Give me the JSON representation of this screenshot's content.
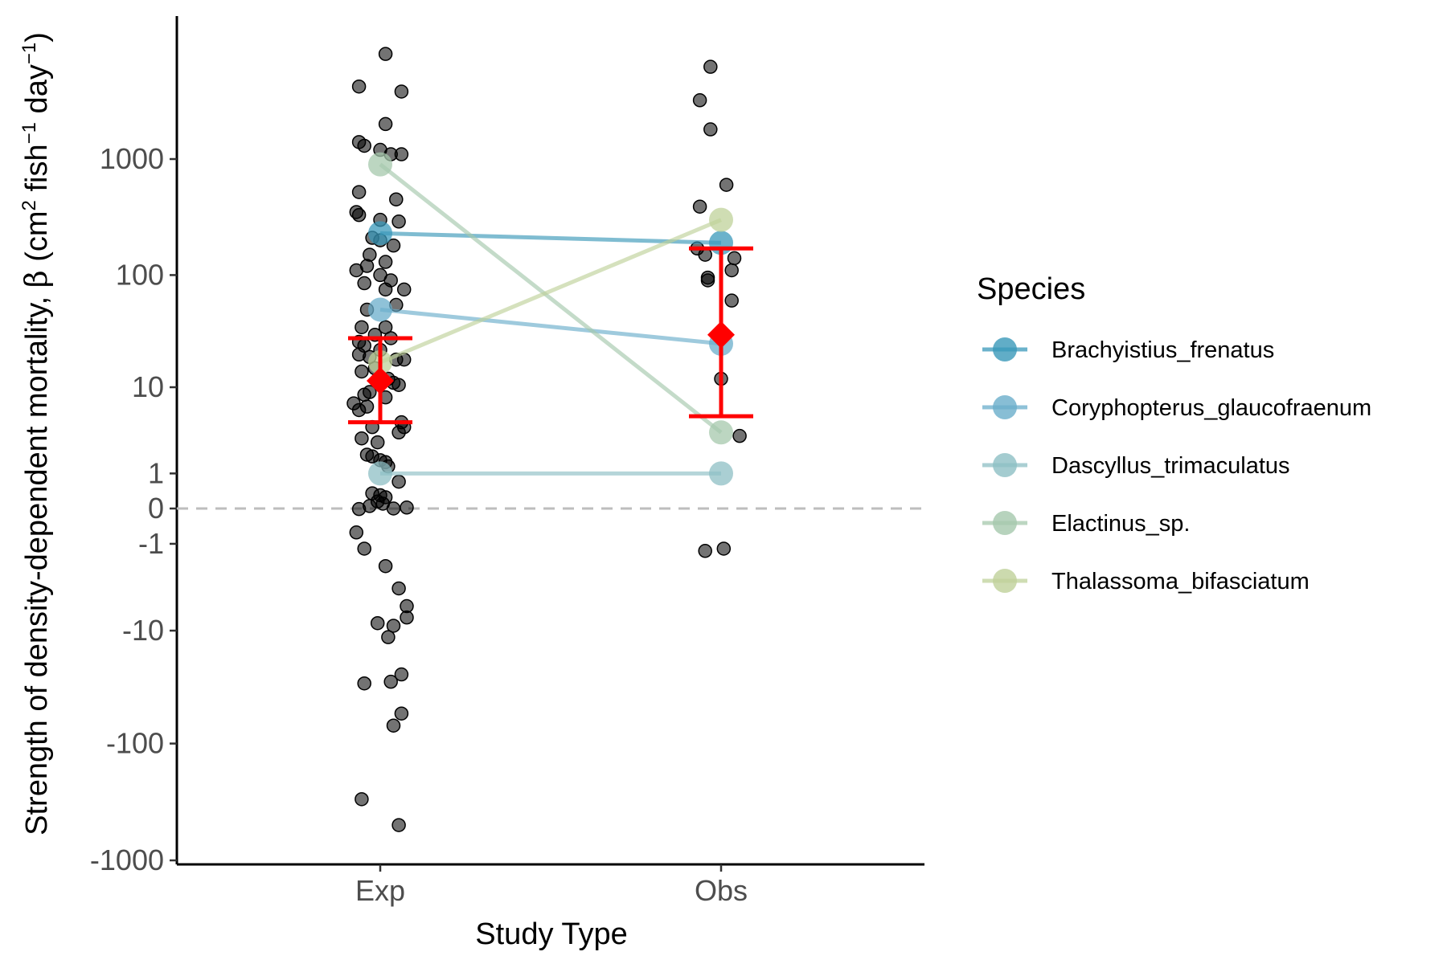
{
  "chart_data": {
    "type": "scatter",
    "title": "",
    "xlabel": "Study Type",
    "ylabel": "Strength of density-dependent mortality, β (cm² fish⁻¹ day⁻¹)",
    "ylabel_parts": {
      "main": "Strength of density-dependent mortality, ",
      "beta": "β",
      "paren_open": " (cm",
      "sup1": "2",
      "mid": " fish",
      "sup2": "−1",
      "mid2": " day",
      "sup3": "−1",
      "paren_close": ")"
    },
    "y_scale": "pseudo-log (signed log10(1+|y|))",
    "categories": [
      "Exp",
      "Obs"
    ],
    "y_ticks": [
      {
        "value": -1000,
        "label": "-1000"
      },
      {
        "value": -100,
        "label": "-100"
      },
      {
        "value": -10,
        "label": "-10"
      },
      {
        "value": -1,
        "label": "-1"
      },
      {
        "value": 0,
        "label": "0"
      },
      {
        "value": 1,
        "label": "1"
      },
      {
        "value": 10,
        "label": "10"
      },
      {
        "value": 100,
        "label": "100"
      },
      {
        "value": 1000,
        "label": "1000"
      }
    ],
    "reference_line": {
      "y": 0,
      "style": "dashed",
      "color": "#bdbdbd"
    },
    "grid": false,
    "legend": {
      "title": "Species",
      "position": "right",
      "entries": [
        {
          "label": "Brachyistius_frenatus",
          "color": "#3a98b9"
        },
        {
          "label": "Coryphopterus_glaucofraenum",
          "color": "#6aaecb"
        },
        {
          "label": "Dascyllus_trimaculatus",
          "color": "#8dbfc4"
        },
        {
          "label": "Elactinus_sp.",
          "color": "#a5c8ac"
        },
        {
          "label": "Thalassoma_bifasciatum",
          "color": "#bfd19a"
        }
      ]
    },
    "species_lines": [
      {
        "name": "Brachyistius_frenatus",
        "color": "#3a98b9",
        "exp": 230,
        "obs": 190
      },
      {
        "name": "Coryphopterus_glaucofraenum",
        "color": "#6aaecb",
        "exp": 50,
        "obs": 25
      },
      {
        "name": "Dascyllus_trimaculatus",
        "color": "#8dbfc4",
        "exp": 1,
        "obs": 1
      },
      {
        "name": "Elactinus_sp.",
        "color": "#a5c8ac",
        "exp": 900,
        "obs": 3.5
      },
      {
        "name": "Thalassoma_bifasciatum",
        "color": "#bfd19a",
        "exp": 17,
        "obs": 300
      }
    ],
    "summary": [
      {
        "category": "Exp",
        "mean": 11.5,
        "lower": 4.5,
        "upper": 28,
        "color": "#ff0000"
      },
      {
        "category": "Obs",
        "mean": 30,
        "lower": 5.2,
        "upper": 170,
        "color": "#ff0000"
      }
    ],
    "points": {
      "Exp": [
        {
          "j": 0.02,
          "y": 8000
        },
        {
          "j": -0.08,
          "y": 4200
        },
        {
          "j": 0.08,
          "y": 3800
        },
        {
          "j": 0.02,
          "y": 2000
        },
        {
          "j": -0.08,
          "y": 1400
        },
        {
          "j": -0.06,
          "y": 1300
        },
        {
          "j": 0.0,
          "y": 1200
        },
        {
          "j": 0.04,
          "y": 1100
        },
        {
          "j": 0.08,
          "y": 1100
        },
        {
          "j": -0.08,
          "y": 520
        },
        {
          "j": 0.06,
          "y": 450
        },
        {
          "j": -0.09,
          "y": 350
        },
        {
          "j": -0.08,
          "y": 330
        },
        {
          "j": 0.0,
          "y": 300
        },
        {
          "j": 0.07,
          "y": 290
        },
        {
          "j": -0.03,
          "y": 210
        },
        {
          "j": 0.0,
          "y": 200
        },
        {
          "j": 0.05,
          "y": 180
        },
        {
          "j": -0.04,
          "y": 150
        },
        {
          "j": 0.02,
          "y": 130
        },
        {
          "j": -0.05,
          "y": 120
        },
        {
          "j": -0.09,
          "y": 110
        },
        {
          "j": 0.0,
          "y": 100
        },
        {
          "j": 0.04,
          "y": 90
        },
        {
          "j": -0.06,
          "y": 85
        },
        {
          "j": 0.02,
          "y": 75
        },
        {
          "j": 0.09,
          "y": 75
        },
        {
          "j": 0.06,
          "y": 55
        },
        {
          "j": -0.05,
          "y": 50
        },
        {
          "j": 0.02,
          "y": 35
        },
        {
          "j": -0.07,
          "y": 35
        },
        {
          "j": -0.02,
          "y": 30
        },
        {
          "j": 0.04,
          "y": 28
        },
        {
          "j": -0.08,
          "y": 26
        },
        {
          "j": -0.06,
          "y": 24
        },
        {
          "j": 0.0,
          "y": 22
        },
        {
          "j": -0.08,
          "y": 20
        },
        {
          "j": -0.04,
          "y": 19
        },
        {
          "j": 0.06,
          "y": 18
        },
        {
          "j": 0.09,
          "y": 18
        },
        {
          "j": -0.02,
          "y": 15
        },
        {
          "j": -0.07,
          "y": 14
        },
        {
          "j": 0.03,
          "y": 12
        },
        {
          "j": 0.05,
          "y": 11
        },
        {
          "j": 0.07,
          "y": 10.5
        },
        {
          "j": -0.04,
          "y": 9
        },
        {
          "j": -0.06,
          "y": 8.5
        },
        {
          "j": 0.02,
          "y": 8
        },
        {
          "j": -0.1,
          "y": 7
        },
        {
          "j": -0.05,
          "y": 6.5
        },
        {
          "j": -0.08,
          "y": 6
        },
        {
          "j": 0.08,
          "y": 4.5
        },
        {
          "j": 0.09,
          "y": 4
        },
        {
          "j": -0.03,
          "y": 4
        },
        {
          "j": 0.07,
          "y": 3.5
        },
        {
          "j": -0.07,
          "y": 3
        },
        {
          "j": -0.01,
          "y": 2.7
        },
        {
          "j": -0.05,
          "y": 1.9
        },
        {
          "j": -0.03,
          "y": 1.8
        },
        {
          "j": 0.0,
          "y": 1.6
        },
        {
          "j": 0.02,
          "y": 1.5
        },
        {
          "j": 0.03,
          "y": 1.3
        },
        {
          "j": 0.07,
          "y": 0.7
        },
        {
          "j": -0.03,
          "y": 0.35
        },
        {
          "j": 0.0,
          "y": 0.3
        },
        {
          "j": 0.02,
          "y": 0.25
        },
        {
          "j": -0.01,
          "y": 0.15
        },
        {
          "j": 0.01,
          "y": 0.1
        },
        {
          "j": -0.04,
          "y": 0.05
        },
        {
          "j": 0.05,
          "y": 0.0
        },
        {
          "j": 0.1,
          "y": 0.02
        },
        {
          "j": -0.08,
          "y": -0.01
        },
        {
          "j": -0.09,
          "y": -0.6
        },
        {
          "j": -0.06,
          "y": -1.2
        },
        {
          "j": 0.02,
          "y": -2.1
        },
        {
          "j": 0.07,
          "y": -3.8
        },
        {
          "j": 0.1,
          "y": -5.8
        },
        {
          "j": 0.1,
          "y": -7.5
        },
        {
          "j": -0.01,
          "y": -8.5
        },
        {
          "j": 0.05,
          "y": -9
        },
        {
          "j": 0.03,
          "y": -11.5
        },
        {
          "j": -0.06,
          "y": -30
        },
        {
          "j": 0.04,
          "y": -29
        },
        {
          "j": 0.08,
          "y": -25
        },
        {
          "j": 0.08,
          "y": -55
        },
        {
          "j": 0.05,
          "y": -70
        },
        {
          "j": -0.07,
          "y": -300
        },
        {
          "j": 0.07,
          "y": -500
        }
      ],
      "Obs": [
        {
          "j": -0.04,
          "y": 6200
        },
        {
          "j": -0.08,
          "y": 3200
        },
        {
          "j": -0.04,
          "y": 1800
        },
        {
          "j": 0.02,
          "y": 600
        },
        {
          "j": -0.08,
          "y": 390
        },
        {
          "j": -0.09,
          "y": 170
        },
        {
          "j": -0.06,
          "y": 150
        },
        {
          "j": 0.05,
          "y": 140
        },
        {
          "j": -0.05,
          "y": 95
        },
        {
          "j": -0.05,
          "y": 90
        },
        {
          "j": 0.04,
          "y": 110
        },
        {
          "j": 0.04,
          "y": 60
        },
        {
          "j": 0.0,
          "y": 12
        },
        {
          "j": 0.07,
          "y": 3.2
        },
        {
          "j": -0.06,
          "y": -1.3
        },
        {
          "j": 0.01,
          "y": -1.2
        }
      ]
    }
  }
}
